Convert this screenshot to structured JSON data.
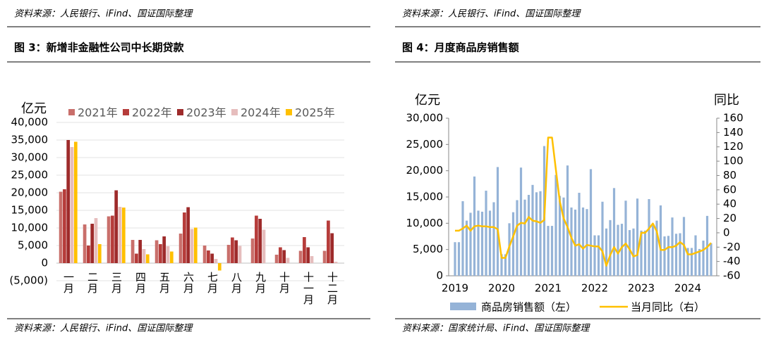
{
  "notes_above": [
    "资料来源：人民银行、iFind、国证国际整理",
    "资料来源：人民银行、iFind、国证国际整理"
  ],
  "chart_data": [
    {
      "type": "bar",
      "title": "图 3：新增非金融性公司中长期贷款",
      "source": "资料来源：人民银行、iFind、国证国际整理",
      "y_label": "亿元",
      "categories": [
        "一月",
        "二月",
        "三月",
        "四月",
        "五月",
        "六月",
        "七月",
        "八月",
        "九月",
        "十月",
        "十一月",
        "十二月"
      ],
      "series": [
        {
          "name": "2021年",
          "color": "#c96f6b",
          "values": [
            20300,
            11000,
            13300,
            6600,
            6500,
            8400,
            5000,
            5200,
            7000,
            2400,
            3500,
            3500
          ]
        },
        {
          "name": "2022年",
          "color": "#b63c3a",
          "values": [
            21000,
            5000,
            13500,
            2700,
            5400,
            14400,
            3600,
            7300,
            13500,
            4500,
            7400,
            12100
          ]
        },
        {
          "name": "2023年",
          "color": "#9e2b2b",
          "values": [
            35000,
            11200,
            20700,
            6600,
            7600,
            15900,
            2700,
            6500,
            12600,
            3700,
            4500,
            8500
          ]
        },
        {
          "name": "2024年",
          "color": "#e6bdbd",
          "values": [
            33000,
            12800,
            16000,
            4000,
            4800,
            9700,
            1200,
            4900,
            9500,
            1500,
            2000,
            400
          ]
        },
        {
          "name": "2025年",
          "color": "#ffc000",
          "values": [
            34500,
            5400,
            15800,
            2500,
            3300,
            10100,
            -2100,
            null,
            null,
            null,
            null,
            null
          ]
        }
      ],
      "ylim": [
        -5000,
        40000
      ],
      "yticks": [
        {
          "value": 40000,
          "label": "40,000"
        },
        {
          "value": 35000,
          "label": "35,000"
        },
        {
          "value": 30000,
          "label": "30,000"
        },
        {
          "value": 25000,
          "label": "25,000"
        },
        {
          "value": 20000,
          "label": "20,000"
        },
        {
          "value": 15000,
          "label": "15,000"
        },
        {
          "value": 10000,
          "label": "10,000"
        },
        {
          "value": 5000,
          "label": "5,000"
        },
        0,
        {
          "value": -5000,
          "label": "(5,000)"
        }
      ],
      "grid": true,
      "negative_tick_color": "#e00000"
    },
    {
      "type": "combo",
      "title": "图 4：月度商品房销售额",
      "source": "资料来源：国家统计局、iFind、国证国际整理",
      "y_label": "亿元",
      "y2_label": "同比",
      "categories": [
        "2019",
        null,
        null,
        null,
        null,
        null,
        null,
        null,
        null,
        null,
        null,
        null,
        "2020",
        null,
        null,
        null,
        null,
        null,
        null,
        null,
        null,
        null,
        null,
        null,
        "2021",
        null,
        null,
        null,
        null,
        null,
        null,
        null,
        null,
        null,
        null,
        null,
        "2022",
        null,
        null,
        null,
        null,
        null,
        null,
        null,
        null,
        null,
        null,
        null,
        "2023",
        null,
        null,
        null,
        null,
        null,
        null,
        null,
        null,
        null,
        null,
        null,
        "2024",
        null,
        null,
        null,
        null,
        null,
        null
      ],
      "series": [
        {
          "name": "商品房销售额（左）",
          "color": "#95b3d7",
          "kind": "bar",
          "values": [
            6400,
            6400,
            14200,
            10500,
            12000,
            18900,
            12400,
            12200,
            16200,
            12400,
            14000,
            20700,
            4100,
            4100,
            10000,
            12100,
            14400,
            20600,
            14500,
            15400,
            17300,
            15900,
            16100,
            24700,
            9500,
            9500,
            19200,
            15200,
            14900,
            21000,
            13000,
            12600,
            15800,
            13000,
            12700,
            20300,
            7700,
            7700,
            14100,
            9000,
            10600,
            16700,
            9700,
            9900,
            14300,
            8700,
            9000,
            14700,
            8600,
            8600,
            14600,
            9600,
            10500,
            13400,
            7500,
            7600,
            11100,
            8000,
            8100,
            11200,
            5300,
            5300,
            7700,
            5100,
            6700,
            11400,
            6200
          ]
        },
        {
          "name": "当月同比（右）",
          "color": "#ffc000",
          "kind": "line",
          "axis": "y2",
          "values": [
            3,
            3,
            6,
            10,
            3,
            9,
            10,
            9,
            9,
            8,
            8,
            5,
            -35,
            -35,
            -19,
            -5,
            10,
            14,
            13,
            22,
            17,
            16,
            14,
            18,
            133,
            133,
            88,
            44,
            20,
            8,
            -7,
            -18,
            -16,
            -22,
            -17,
            -18,
            -19,
            -19,
            -26,
            -46,
            -31,
            -20,
            -29,
            -20,
            -15,
            -23,
            -33,
            -31,
            0,
            0,
            6,
            13,
            2,
            -24,
            -24,
            -20,
            -20,
            -18,
            -13,
            -17,
            -30,
            -30,
            -28,
            -26,
            -24,
            -20,
            -14
          ]
        }
      ],
      "ylim": [
        0,
        30000
      ],
      "yticks": [
        {
          "value": 30000,
          "label": "30,000"
        },
        {
          "value": 25000,
          "label": "25,000"
        },
        {
          "value": 20000,
          "label": "20,000"
        },
        {
          "value": 15000,
          "label": "15,000"
        },
        {
          "value": 10000,
          "label": "10,000"
        },
        {
          "value": 5000,
          "label": "5,000"
        },
        0
      ],
      "y2lim": [
        -60,
        160
      ],
      "y2ticks": [
        160,
        140,
        120,
        100,
        80,
        60,
        40,
        20,
        0,
        -20,
        -40,
        -60
      ],
      "grid": false
    }
  ]
}
